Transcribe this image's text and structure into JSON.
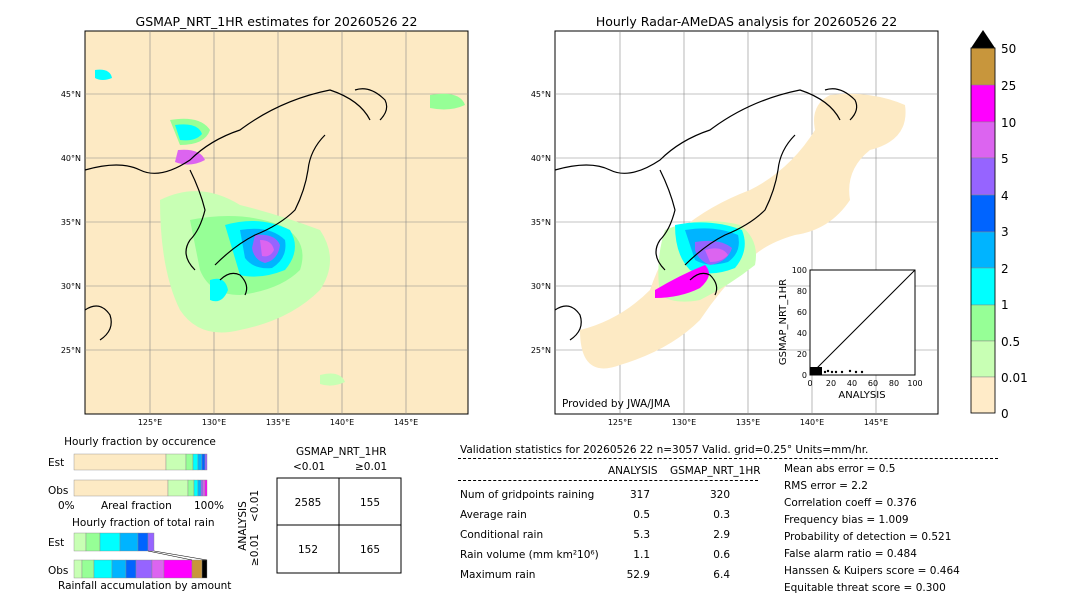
{
  "left_map": {
    "title": "GSMAP_NRT_1HR estimates for 20260526 22",
    "lat_labels": [
      "45°N",
      "40°N",
      "35°N",
      "30°N",
      "25°N"
    ],
    "lon_labels": [
      "125°E",
      "130°E",
      "135°E",
      "140°E",
      "145°E"
    ]
  },
  "right_map": {
    "title": "Hourly Radar-AMeDAS analysis for 20260526 22",
    "lat_labels": [
      "45°N",
      "40°N",
      "35°N",
      "30°N",
      "25°N"
    ],
    "lon_labels": [
      "125°E",
      "130°E",
      "135°E",
      "140°E",
      "145°E"
    ],
    "credit": "Provided by JWA/JMA"
  },
  "colorbar": {
    "labels": [
      "50",
      "25",
      "10",
      "5",
      "4",
      "3",
      "2",
      "1",
      "0.5",
      "0.01",
      "0"
    ],
    "colors": [
      "#c8963c",
      "#ff00ff",
      "#dc64f0",
      "#9664ff",
      "#0064ff",
      "#00b4ff",
      "#00ffff",
      "#96ff96",
      "#c8ffb4",
      "#ffebc8"
    ]
  },
  "scatter": {
    "xlabel": "ANALYSIS",
    "ylabel": "GSMAP_NRT_1HR",
    "ticks": [
      "0",
      "20",
      "40",
      "60",
      "80",
      "100"
    ]
  },
  "fraction_occurrence": {
    "title": "Hourly fraction by occurence",
    "row_labels": [
      "Est",
      "Obs"
    ],
    "axis_left": "0%",
    "axis_mid": "Areal fraction",
    "axis_right": "100%"
  },
  "fraction_total": {
    "title": "Hourly fraction of total rain",
    "row_labels": [
      "Est",
      "Obs"
    ],
    "footer": "Rainfall accumulation by amount"
  },
  "contingency": {
    "title": "GSMAP_NRT_1HR",
    "col_labels": [
      "<0.01",
      "≥0.01"
    ],
    "row_title": "ANALYSIS",
    "row_labels": [
      "<0.01",
      "≥0.01"
    ],
    "cells": [
      [
        "2585",
        "155"
      ],
      [
        "152",
        "165"
      ]
    ]
  },
  "validation": {
    "header": "Validation statistics for 20260526 22  n=3057 Valid. grid=0.25° Units=mm/hr.",
    "col_analysis": "ANALYSIS",
    "col_gsmap": "GSMAP_NRT_1HR",
    "rows": [
      {
        "label": "Num of gridpoints raining",
        "analysis": "317",
        "gsmap": "320"
      },
      {
        "label": "Average rain",
        "analysis": "0.5",
        "gsmap": "0.3"
      },
      {
        "label": "Conditional rain",
        "analysis": "5.3",
        "gsmap": "2.9"
      },
      {
        "label": "Rain volume (mm km²10⁶)",
        "analysis": "1.1",
        "gsmap": "0.6"
      },
      {
        "label": "Maximum rain",
        "analysis": "52.9",
        "gsmap": "6.4"
      }
    ],
    "scores": [
      "Mean abs error =    0.5",
      "RMS error =    2.2",
      "Correlation coeff =  0.376",
      "Frequency bias =  1.009",
      "Probability of detection =  0.521",
      "False alarm ratio =  0.484",
      "Hanssen & Kuipers score =  0.464",
      "Equitable threat score =  0.300"
    ]
  },
  "chart_data": {
    "type": "table",
    "contingency_table": {
      "rows": [
        "<0.01",
        "≥0.01"
      ],
      "cols": [
        "<0.01",
        "≥0.01"
      ],
      "values": [
        [
          2585,
          155
        ],
        [
          152,
          165
        ]
      ]
    },
    "statistics": {
      "analysis": {
        "num_raining": 317,
        "average": 0.5,
        "conditional": 5.3,
        "volume": 1.1,
        "max": 52.9
      },
      "gsmap": {
        "num_raining": 320,
        "average": 0.3,
        "conditional": 2.9,
        "volume": 0.6,
        "max": 6.4
      },
      "mae": 0.5,
      "rmse": 2.2,
      "corr": 0.376,
      "bias": 1.009,
      "pod": 0.521,
      "far": 0.484,
      "hk": 0.464,
      "ets": 0.3
    },
    "scatter_range": [
      0,
      100
    ]
  }
}
